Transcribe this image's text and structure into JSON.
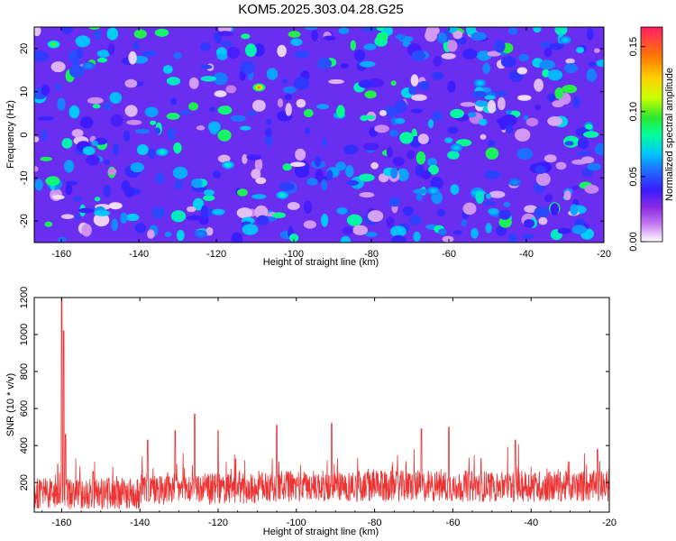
{
  "title": "KOM5.2025.303.04.28.G25",
  "chart_data": [
    {
      "type": "heatmap",
      "xlabel": "Height of straight line (km)",
      "ylabel": "Frequency (Hz)",
      "xlim": [
        -167,
        -20
      ],
      "ylim": [
        -25,
        25
      ],
      "xticks": [
        -160,
        -140,
        -120,
        -100,
        -80,
        -60,
        -40,
        -20
      ],
      "yticks": [
        20,
        10,
        0,
        -10,
        -20
      ],
      "colorbar": {
        "label": "Normalized spectral amplitude",
        "range": [
          0.0,
          0.165
        ],
        "ticks": [
          "0.00",
          "0.05",
          "0.10",
          "0.15"
        ],
        "colors": [
          "#ffffff",
          "#c47cf0",
          "#8a2be2",
          "#3b1cff",
          "#1f6bff",
          "#00c8ff",
          "#00ff96",
          "#2ee82e",
          "#c8ff00",
          "#ffd200",
          "#ff7a00",
          "#ff1e64"
        ]
      },
      "hotspots": [
        {
          "x": -109,
          "y": 11,
          "value": 0.14
        },
        {
          "x": -162,
          "y": 21,
          "value": 0.1
        },
        {
          "x": -134,
          "y": -4,
          "value": 0.08
        },
        {
          "x": -117,
          "y": -7,
          "value": 0.08
        },
        {
          "x": -103,
          "y": -14,
          "value": 0.08
        },
        {
          "x": -64,
          "y": -13,
          "value": 0.07
        },
        {
          "x": -58,
          "y": -3,
          "value": 0.07
        },
        {
          "x": -52,
          "y": 12,
          "value": 0.07
        },
        {
          "x": -30,
          "y": 22,
          "value": 0.07
        },
        {
          "x": -124,
          "y": -23,
          "value": 0.06
        },
        {
          "x": -153,
          "y": 16,
          "value": 0.06
        },
        {
          "x": -43,
          "y": -11,
          "value": 0.06
        }
      ]
    },
    {
      "type": "line",
      "xlabel": "Height of straight line (km)",
      "ylabel": "SNR (10 * v/v)",
      "xlim": [
        -167,
        -20
      ],
      "ylim": [
        40,
        1200
      ],
      "xticks": [
        -160,
        -140,
        -120,
        -100,
        -80,
        -60,
        -40,
        -20
      ],
      "yticks": [
        200,
        400,
        600,
        800,
        1000,
        1200
      ],
      "color": "#ee3333",
      "baseline": 140,
      "spikes": [
        {
          "x": -160,
          "y": 1200
        },
        {
          "x": -159.5,
          "y": 1020
        },
        {
          "x": -159,
          "y": 460
        },
        {
          "x": -161,
          "y": 300
        },
        {
          "x": -152,
          "y": 260
        },
        {
          "x": -138,
          "y": 430
        },
        {
          "x": -131,
          "y": 480
        },
        {
          "x": -126,
          "y": 570
        },
        {
          "x": -120,
          "y": 480
        },
        {
          "x": -105,
          "y": 510
        },
        {
          "x": -91,
          "y": 520
        },
        {
          "x": -68,
          "y": 490
        },
        {
          "x": -61,
          "y": 500
        },
        {
          "x": -44,
          "y": 430
        },
        {
          "x": -23,
          "y": 380
        }
      ]
    }
  ]
}
